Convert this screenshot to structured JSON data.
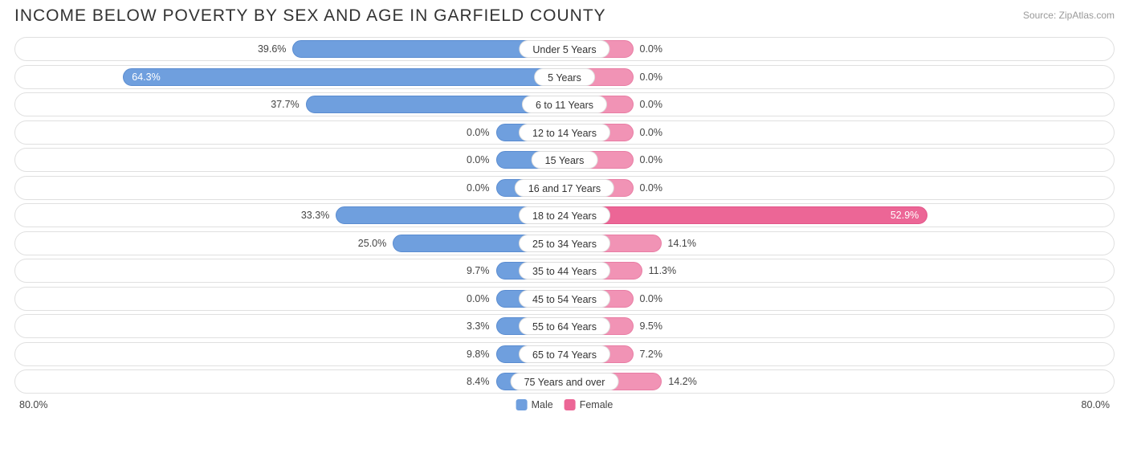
{
  "title": "INCOME BELOW POVERTY BY SEX AND AGE IN GARFIELD COUNTY",
  "source": "Source: ZipAtlas.com",
  "axis_max": 80.0,
  "axis_label_left": "80.0%",
  "axis_label_right": "80.0%",
  "min_bar_pct": 10.0,
  "colors": {
    "male_fill": "#6f9fde",
    "male_border": "#5a8cd0",
    "female_fill": "#f193b5",
    "female_border": "#e87da4",
    "female_highlight_fill": "#ec6696",
    "female_highlight_border": "#e25589",
    "row_border": "#e0e0e0",
    "text": "#444444",
    "title_text": "#333333",
    "source_text": "#999999",
    "background": "#ffffff"
  },
  "legend": {
    "male": "Male",
    "female": "Female"
  },
  "rows": [
    {
      "label": "Under 5 Years",
      "male": 39.6,
      "female": 0.0,
      "highlight": false
    },
    {
      "label": "5 Years",
      "male": 64.3,
      "female": 0.0,
      "highlight": false
    },
    {
      "label": "6 to 11 Years",
      "male": 37.7,
      "female": 0.0,
      "highlight": false
    },
    {
      "label": "12 to 14 Years",
      "male": 0.0,
      "female": 0.0,
      "highlight": false
    },
    {
      "label": "15 Years",
      "male": 0.0,
      "female": 0.0,
      "highlight": false
    },
    {
      "label": "16 and 17 Years",
      "male": 0.0,
      "female": 0.0,
      "highlight": false
    },
    {
      "label": "18 to 24 Years",
      "male": 33.3,
      "female": 52.9,
      "highlight": true
    },
    {
      "label": "25 to 34 Years",
      "male": 25.0,
      "female": 14.1,
      "highlight": false
    },
    {
      "label": "35 to 44 Years",
      "male": 9.7,
      "female": 11.3,
      "highlight": false
    },
    {
      "label": "45 to 54 Years",
      "male": 0.0,
      "female": 0.0,
      "highlight": false
    },
    {
      "label": "55 to 64 Years",
      "male": 3.3,
      "female": 9.5,
      "highlight": false
    },
    {
      "label": "65 to 74 Years",
      "male": 9.8,
      "female": 7.2,
      "highlight": false
    },
    {
      "label": "75 Years and over",
      "male": 8.4,
      "female": 14.2,
      "highlight": false
    }
  ]
}
